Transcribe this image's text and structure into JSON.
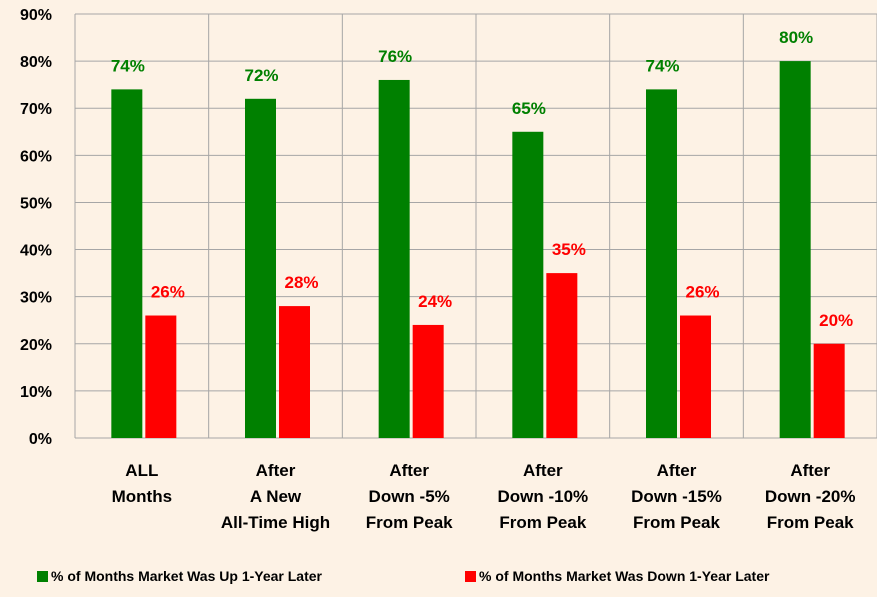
{
  "chart_data": {
    "type": "bar",
    "title": "",
    "xlabel": "",
    "ylabel": "",
    "ylim": [
      0,
      90
    ],
    "yticks": [
      "0%",
      "10%",
      "20%",
      "30%",
      "40%",
      "50%",
      "60%",
      "70%",
      "80%",
      "90%"
    ],
    "grid": true,
    "legend_position": "bottom",
    "categories": [
      [
        "ALL",
        "Months"
      ],
      [
        "After",
        "A New",
        "All-Time High"
      ],
      [
        "After",
        "Down -5%",
        "From Peak"
      ],
      [
        "After",
        "Down -10%",
        "From Peak"
      ],
      [
        "After",
        "Down -15%",
        "From Peak"
      ],
      [
        "After",
        "Down -20%",
        "From Peak"
      ]
    ],
    "series": [
      {
        "name": "% of Months Market Was Up 1-Year Later",
        "color": "#008000",
        "values": [
          74,
          72,
          76,
          65,
          74,
          80
        ],
        "labels": [
          "74%",
          "72%",
          "76%",
          "65%",
          "74%",
          "80%"
        ]
      },
      {
        "name": "% of Months Market Was Down 1-Year Later",
        "color": "#FF0000",
        "values": [
          26,
          28,
          24,
          35,
          26,
          20
        ],
        "labels": [
          "26%",
          "28%",
          "24%",
          "35%",
          "26%",
          "20%"
        ]
      }
    ]
  }
}
